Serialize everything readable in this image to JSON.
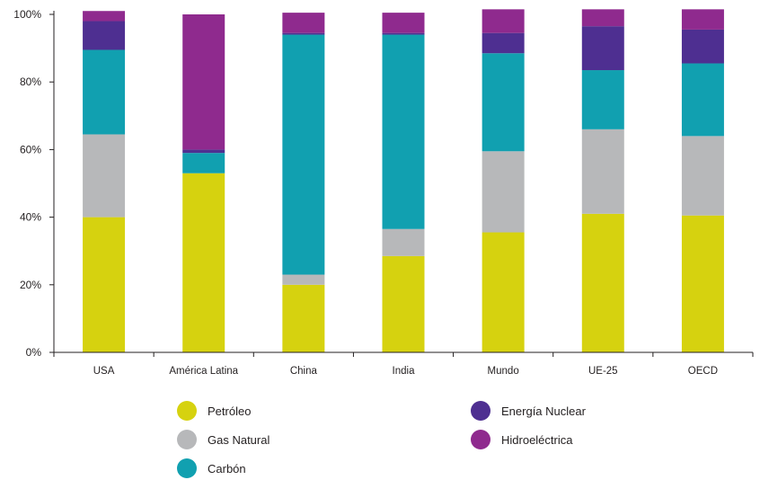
{
  "chart_data": {
    "type": "bar",
    "stacked": true,
    "categories": [
      "USA",
      "América Latina",
      "China",
      "India",
      "Mundo",
      "UE-25",
      "OECD"
    ],
    "y_ticks": [
      "0%",
      "20%",
      "40%",
      "60%",
      "80%",
      "100%"
    ],
    "ylim": [
      0,
      100
    ],
    "grid": false,
    "legend_position": "bottom",
    "series": [
      {
        "name": "Petróleo",
        "color": "#d6d20f",
        "values": [
          40,
          53,
          20,
          28.5,
          35.5,
          41,
          40.5
        ]
      },
      {
        "name": "Gas Natural",
        "color": "#b7b8ba",
        "values": [
          24.5,
          0,
          3,
          8,
          24,
          25,
          23.5
        ]
      },
      {
        "name": "Carbón",
        "color": "#11a0b0",
        "values": [
          25,
          6,
          71,
          57.5,
          29,
          17.5,
          21.5
        ]
      },
      {
        "name": "Energía Nuclear",
        "color": "#4e2f91",
        "values": [
          8.5,
          1,
          0.5,
          0.5,
          6,
          13,
          10
        ]
      },
      {
        "name": "Hidroeléctrica",
        "color": "#8f2a8e",
        "values": [
          3,
          40,
          6,
          6,
          7,
          5,
          6
        ]
      }
    ],
    "legend_columns": [
      [
        "Petróleo",
        "Gas Natural",
        "Carbón"
      ],
      [
        "Energía Nuclear",
        "Hidroeléctrica"
      ]
    ]
  }
}
